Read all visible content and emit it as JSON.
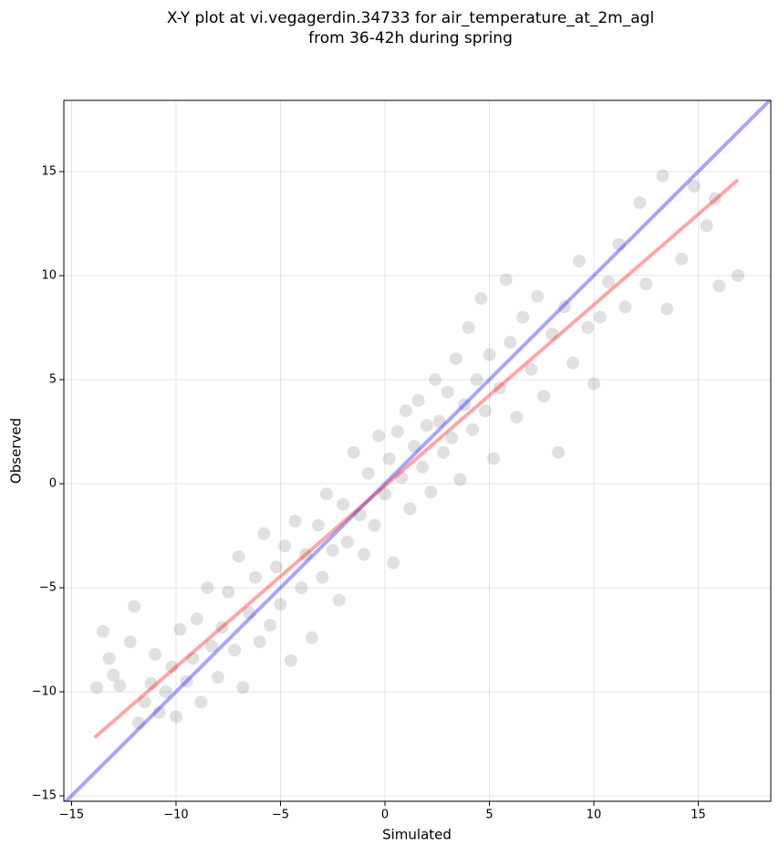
{
  "chart_data": {
    "type": "scatter",
    "title": [
      "X-Y plot at vi.vegagerdin.34733 for air_temperature_at_2m_agl",
      "from 36-42h during spring"
    ],
    "x_label": "Simulated",
    "y_label": "Observed",
    "color": "#000000",
    "grid": true,
    "xlim": [
      -15.37,
      18.47
    ],
    "ylim": [
      -15.26,
      18.42
    ],
    "xticks": [
      {
        "value": -15,
        "label": "−15"
      },
      {
        "value": -10,
        "label": "−10"
      },
      {
        "value": -5,
        "label": "−5"
      },
      0,
      5,
      10,
      15
    ],
    "yticks": [
      {
        "value": -15,
        "label": "−15"
      },
      {
        "value": -10,
        "label": "−10"
      },
      {
        "value": -5,
        "label": "−5"
      },
      0,
      5,
      10,
      15
    ],
    "x": [
      -13.8,
      -13.5,
      -13.2,
      -13,
      -12.7,
      -12.2,
      -12,
      -11.8,
      -11.5,
      -11.2,
      -11,
      -10.8,
      -10.5,
      -10.2,
      -10,
      -9.8,
      -9.5,
      -9.2,
      -9,
      -8.8,
      -8.5,
      -8.3,
      -8,
      -7.8,
      -7.5,
      -7.2,
      -7,
      -6.8,
      -6.5,
      -6.2,
      -6,
      -5.8,
      -5.5,
      -5.2,
      -5,
      -4.8,
      -4.5,
      -4.3,
      -4,
      -3.8,
      -3.5,
      -3.2,
      -3,
      -2.8,
      -2.5,
      -2.2,
      -2,
      -1.8,
      -1.5,
      -1.2,
      -1,
      -0.8,
      -0.5,
      -0.3,
      0,
      0.2,
      0.4,
      0.6,
      0.8,
      1,
      1.2,
      1.4,
      1.6,
      1.8,
      2,
      2.2,
      2.4,
      2.6,
      2.8,
      3,
      3.2,
      3.4,
      3.6,
      3.8,
      4,
      4.2,
      4.4,
      4.6,
      4.8,
      5,
      5.2,
      5.5,
      5.8,
      6,
      6.3,
      6.6,
      7,
      7.3,
      7.6,
      8,
      8.3,
      8.6,
      9,
      9.3,
      9.7,
      10,
      10.3,
      10.7,
      11.2,
      11.5,
      12.2,
      12.5,
      13.3,
      13.5,
      14.2,
      14.8,
      15.4,
      15.8,
      16,
      16.9
    ],
    "values": [
      -9.8,
      -7.1,
      -8.4,
      -9.2,
      -9.7,
      -7.6,
      -5.9,
      -11.5,
      -10.5,
      -9.6,
      -8.2,
      -11,
      -10,
      -8.8,
      -11.2,
      -7,
      -9.5,
      -8.4,
      -6.5,
      -10.5,
      -5,
      -7.8,
      -9.3,
      -6.9,
      -5.2,
      -8,
      -3.5,
      -9.8,
      -6.2,
      -4.5,
      -7.6,
      -2.4,
      -6.8,
      -4,
      -5.8,
      -3,
      -8.5,
      -1.8,
      -5,
      -3.4,
      -7.4,
      -2,
      -4.5,
      -0.5,
      -3.2,
      -5.6,
      -1,
      -2.8,
      1.5,
      -1.5,
      -3.4,
      0.5,
      -2,
      2.3,
      -0.5,
      1.2,
      -3.8,
      2.5,
      0.3,
      3.5,
      -1.2,
      1.8,
      4,
      0.8,
      2.8,
      -0.4,
      5,
      3,
      1.5,
      4.4,
      2.2,
      6,
      0.2,
      3.8,
      7.5,
      2.6,
      5,
      8.9,
      3.5,
      6.2,
      1.2,
      4.6,
      9.8,
      6.8,
      3.2,
      8,
      5.5,
      9,
      4.2,
      7.2,
      1.5,
      8.5,
      5.8,
      10.7,
      7.5,
      4.8,
      8,
      9.7,
      11.5,
      8.5,
      13.5,
      9.6,
      14.8,
      8.4,
      10.8,
      14.3,
      12.4,
      13.7,
      9.5,
      10
    ],
    "lines": [
      {
        "color": "#0000ff",
        "x": [
          -15.37,
          18.47
        ],
        "values": [
          -15.37,
          18.47
        ]
      },
      {
        "color": "#ff0000",
        "x": [
          -13.9,
          16.9
        ],
        "values": [
          -12.2,
          14.6
        ]
      }
    ]
  }
}
